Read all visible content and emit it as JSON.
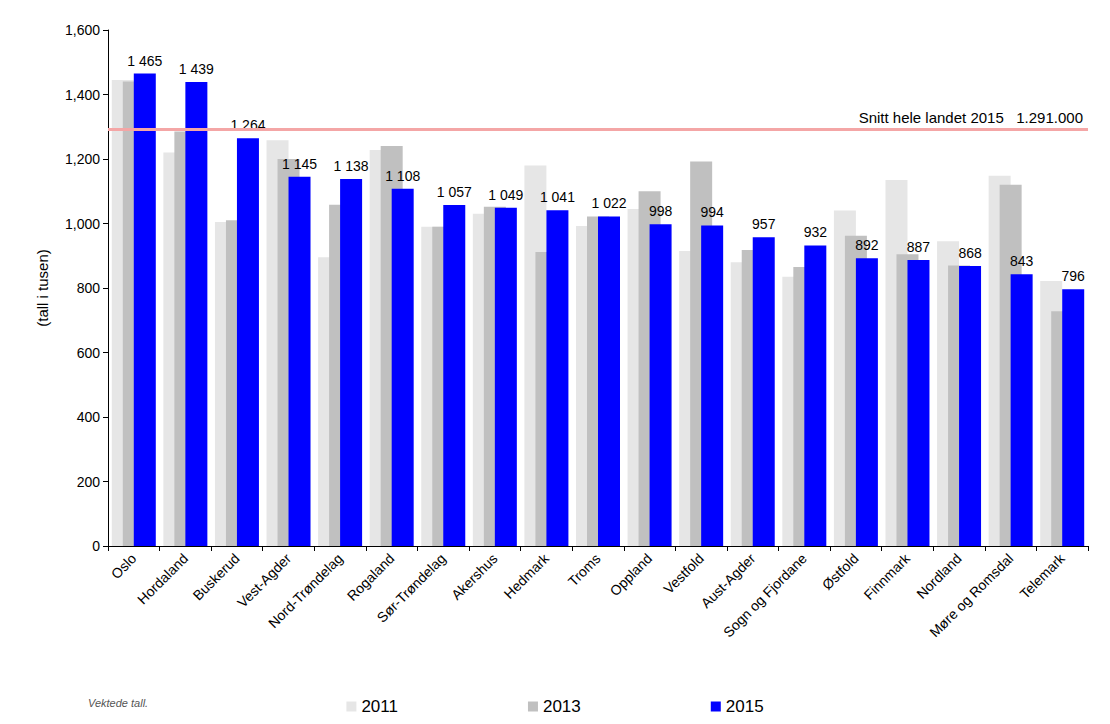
{
  "chart_data": {
    "type": "bar",
    "ylabel": "(tall i tusen)",
    "footnote": "Vektede tall.",
    "categories": [
      "Oslo",
      "Hordaland",
      "Buskerud",
      "Vest-Agder",
      "Nord-Trøndelag",
      "Rogaland",
      "Sør-Trøndelag",
      "Akershus",
      "Hedmark",
      "Troms",
      "Oppland",
      "Vestfold",
      "Aust-Agder",
      "Sogn og Fjordane",
      "Østfold",
      "Finnmark",
      "Nordland",
      "Møre og Romsdal",
      "Telemark"
    ],
    "series": [
      {
        "name": "2011",
        "color": "#e6e6e6",
        "values": [
          1445,
          1220,
          1005,
          1258,
          895,
          1228,
          990,
          1030,
          1180,
          992,
          1045,
          915,
          880,
          835,
          1040,
          1135,
          945,
          1148,
          822
        ]
      },
      {
        "name": "2013",
        "color": "#c0c0c0",
        "values": [
          1440,
          1285,
          1010,
          1200,
          1058,
          1240,
          990,
          1052,
          912,
          1022,
          1100,
          1192,
          918,
          865,
          962,
          905,
          870,
          1120,
          728
        ]
      },
      {
        "name": "2015",
        "color": "#0000ff",
        "data_labels": true,
        "values": [
          1465,
          1439,
          1264,
          1145,
          1138,
          1108,
          1057,
          1049,
          1041,
          1022,
          998,
          994,
          957,
          932,
          892,
          887,
          868,
          843,
          796
        ],
        "value_labels": [
          "1 465",
          "1 439",
          "1 264",
          "1 145",
          "1 138",
          "1 108",
          "1 057",
          "1 049",
          "1 041",
          "1 022",
          "998",
          "994",
          "957",
          "932",
          "892",
          "887",
          "868",
          "843",
          "796"
        ]
      }
    ],
    "annotations": [
      {
        "y": 1291,
        "text": "Snitt hele landet 2015   1.291.000",
        "color": "#f4a6a6"
      }
    ],
    "ylim": [
      0,
      1600
    ],
    "yticks": [
      0,
      200,
      400,
      600,
      800,
      1000,
      1200,
      1400,
      1600
    ],
    "grid": false,
    "legend": "bottom"
  }
}
